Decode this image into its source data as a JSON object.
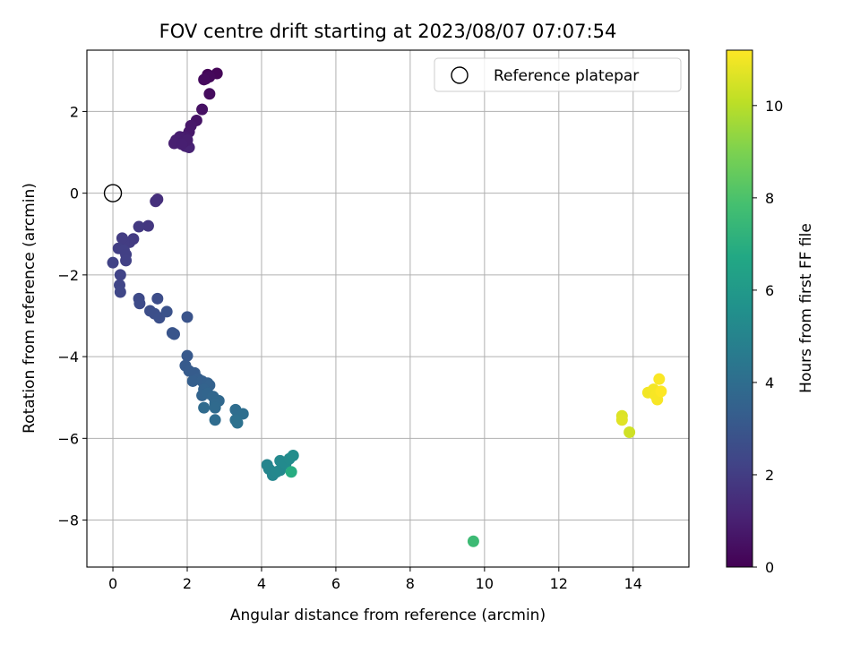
{
  "chart_data": {
    "type": "scatter",
    "title": "FOV centre drift starting at 2023/08/07 07:07:54",
    "xlabel": "Angular distance from reference (arcmin)",
    "ylabel": "Rotation from reference (arcmin)",
    "xlim": [
      -0.7,
      15.5
    ],
    "ylim": [
      -9.15,
      3.5
    ],
    "xticks": [
      0,
      2,
      4,
      6,
      8,
      10,
      12,
      14
    ],
    "xtick_labels": [
      "0",
      "2",
      "4",
      "6",
      "8",
      "10",
      "12",
      "14"
    ],
    "yticks": [
      -8,
      -6,
      -4,
      -2,
      0,
      2
    ],
    "ytick_labels": [
      "−8",
      "−6",
      "−4",
      "−2",
      "0",
      "2"
    ],
    "grid": true,
    "legend": {
      "position": "top-right",
      "entries": [
        "Reference platepar"
      ]
    },
    "reference_point": {
      "x": 0,
      "y": 0,
      "label": "Reference platepar"
    },
    "colorbar": {
      "label": "Hours from first FF file",
      "colormap": "viridis",
      "min": 0,
      "max": 11.2,
      "ticks": [
        0,
        2,
        4,
        6,
        8,
        10
      ],
      "tick_labels": [
        "0",
        "2",
        "4",
        "6",
        "8",
        "10"
      ]
    },
    "points": [
      {
        "x": 2.55,
        "y": 2.9,
        "c": 0.1
      },
      {
        "x": 2.8,
        "y": 2.93,
        "c": 0.15
      },
      {
        "x": 2.5,
        "y": 2.8,
        "c": 0.2
      },
      {
        "x": 2.6,
        "y": 2.85,
        "c": 0.25
      },
      {
        "x": 2.45,
        "y": 2.78,
        "c": 0.3
      },
      {
        "x": 2.6,
        "y": 2.43,
        "c": 0.35
      },
      {
        "x": 2.4,
        "y": 2.05,
        "c": 0.5
      },
      {
        "x": 2.25,
        "y": 1.78,
        "c": 0.6
      },
      {
        "x": 2.1,
        "y": 1.65,
        "c": 0.7
      },
      {
        "x": 2.05,
        "y": 1.5,
        "c": 0.75
      },
      {
        "x": 1.95,
        "y": 1.38,
        "c": 0.8
      },
      {
        "x": 1.85,
        "y": 1.3,
        "c": 0.85
      },
      {
        "x": 1.8,
        "y": 1.38,
        "c": 0.9
      },
      {
        "x": 1.7,
        "y": 1.3,
        "c": 0.95
      },
      {
        "x": 1.65,
        "y": 1.22,
        "c": 1.0
      },
      {
        "x": 1.95,
        "y": 1.15,
        "c": 1.05
      },
      {
        "x": 2.05,
        "y": 1.12,
        "c": 1.1
      },
      {
        "x": 1.9,
        "y": 1.25,
        "c": 0.88
      },
      {
        "x": 2.0,
        "y": 1.3,
        "c": 0.92
      },
      {
        "x": 1.85,
        "y": 1.2,
        "c": 0.97
      },
      {
        "x": 1.2,
        "y": -0.15,
        "c": 1.5
      },
      {
        "x": 1.15,
        "y": -0.2,
        "c": 1.55
      },
      {
        "x": 0.95,
        "y": -0.8,
        "c": 1.8
      },
      {
        "x": 0.7,
        "y": -0.82,
        "c": 1.85
      },
      {
        "x": 0.55,
        "y": -1.12,
        "c": 1.9
      },
      {
        "x": 0.45,
        "y": -1.2,
        "c": 1.95
      },
      {
        "x": 0.3,
        "y": -1.18,
        "c": 2.0
      },
      {
        "x": 0.25,
        "y": -1.1,
        "c": 2.0
      },
      {
        "x": 0.15,
        "y": -1.35,
        "c": 2.05
      },
      {
        "x": 0.3,
        "y": -1.4,
        "c": 2.1
      },
      {
        "x": 0.35,
        "y": -1.5,
        "c": 2.1
      },
      {
        "x": 0.35,
        "y": -1.65,
        "c": 2.15
      },
      {
        "x": 0.0,
        "y": -1.7,
        "c": 2.2
      },
      {
        "x": 0.2,
        "y": -2.0,
        "c": 2.25
      },
      {
        "x": 0.18,
        "y": -2.25,
        "c": 2.3
      },
      {
        "x": 0.2,
        "y": -2.42,
        "c": 2.35
      },
      {
        "x": 0.7,
        "y": -2.58,
        "c": 2.5
      },
      {
        "x": 0.72,
        "y": -2.7,
        "c": 2.55
      },
      {
        "x": 1.2,
        "y": -2.58,
        "c": 2.6
      },
      {
        "x": 1.0,
        "y": -2.88,
        "c": 2.65
      },
      {
        "x": 1.12,
        "y": -2.95,
        "c": 2.7
      },
      {
        "x": 1.25,
        "y": -3.05,
        "c": 2.75
      },
      {
        "x": 1.45,
        "y": -2.9,
        "c": 2.8
      },
      {
        "x": 2.0,
        "y": -3.03,
        "c": 2.85
      },
      {
        "x": 1.6,
        "y": -3.42,
        "c": 2.9
      },
      {
        "x": 1.65,
        "y": -3.45,
        "c": 2.95
      },
      {
        "x": 2.0,
        "y": -3.98,
        "c": 3.1
      },
      {
        "x": 1.95,
        "y": -4.22,
        "c": 3.15
      },
      {
        "x": 2.05,
        "y": -4.35,
        "c": 3.2
      },
      {
        "x": 2.2,
        "y": -4.4,
        "c": 3.25
      },
      {
        "x": 2.3,
        "y": -4.55,
        "c": 3.3
      },
      {
        "x": 2.15,
        "y": -4.6,
        "c": 3.35
      },
      {
        "x": 2.4,
        "y": -4.6,
        "c": 3.4
      },
      {
        "x": 2.55,
        "y": -4.65,
        "c": 3.45
      },
      {
        "x": 2.6,
        "y": -4.7,
        "c": 3.5
      },
      {
        "x": 2.45,
        "y": -4.8,
        "c": 3.55
      },
      {
        "x": 2.4,
        "y": -4.95,
        "c": 3.6
      },
      {
        "x": 2.55,
        "y": -4.9,
        "c": 3.65
      },
      {
        "x": 2.7,
        "y": -4.98,
        "c": 3.7
      },
      {
        "x": 2.85,
        "y": -5.08,
        "c": 3.75
      },
      {
        "x": 2.75,
        "y": -5.15,
        "c": 3.8
      },
      {
        "x": 2.75,
        "y": -5.25,
        "c": 3.85
      },
      {
        "x": 2.45,
        "y": -5.25,
        "c": 3.9
      },
      {
        "x": 2.75,
        "y": -5.55,
        "c": 3.95
      },
      {
        "x": 3.3,
        "y": -5.3,
        "c": 4.0
      },
      {
        "x": 3.5,
        "y": -5.4,
        "c": 4.05
      },
      {
        "x": 3.3,
        "y": -5.55,
        "c": 4.1
      },
      {
        "x": 3.35,
        "y": -5.62,
        "c": 4.15
      },
      {
        "x": 4.15,
        "y": -6.65,
        "c": 5.0
      },
      {
        "x": 4.2,
        "y": -6.75,
        "c": 5.05
      },
      {
        "x": 4.3,
        "y": -6.9,
        "c": 5.1
      },
      {
        "x": 4.4,
        "y": -6.82,
        "c": 5.15
      },
      {
        "x": 4.5,
        "y": -6.78,
        "c": 5.2
      },
      {
        "x": 4.5,
        "y": -6.55,
        "c": 5.25
      },
      {
        "x": 4.65,
        "y": -6.62,
        "c": 5.3
      },
      {
        "x": 4.75,
        "y": -6.5,
        "c": 5.35
      },
      {
        "x": 4.85,
        "y": -6.42,
        "c": 5.4
      },
      {
        "x": 4.8,
        "y": -6.82,
        "c": 6.9
      },
      {
        "x": 9.7,
        "y": -8.52,
        "c": 7.6
      },
      {
        "x": 13.7,
        "y": -5.45,
        "c": 10.6
      },
      {
        "x": 13.7,
        "y": -5.55,
        "c": 10.7
      },
      {
        "x": 13.9,
        "y": -5.85,
        "c": 10.4
      },
      {
        "x": 14.4,
        "y": -4.88,
        "c": 11.0
      },
      {
        "x": 14.55,
        "y": -4.8,
        "c": 11.05
      },
      {
        "x": 14.6,
        "y": -4.95,
        "c": 11.1
      },
      {
        "x": 14.65,
        "y": -5.05,
        "c": 11.1
      },
      {
        "x": 14.7,
        "y": -4.55,
        "c": 11.15
      },
      {
        "x": 14.75,
        "y": -4.85,
        "c": 11.2
      }
    ]
  }
}
